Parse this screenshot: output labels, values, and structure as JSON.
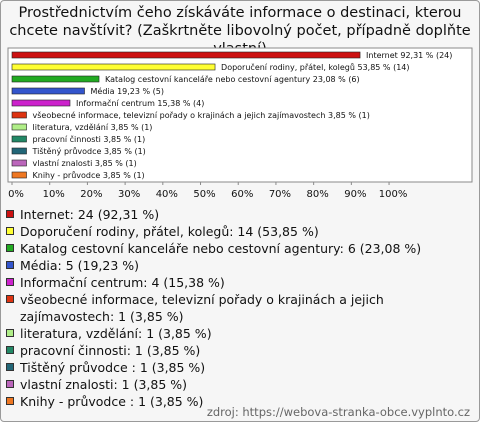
{
  "chart_data": {
    "type": "bar",
    "orientation": "horizontal",
    "title": "Prostřednictvím čeho získáváte informace o destinaci, kterou chcete navštívit? (Zaškrtněte libovolný počet, případně doplňte vlastní)",
    "categories": [
      "Internet",
      "Doporučení rodiny, přátel, kolegů",
      "Katalog cestovní kanceláře nebo cestovní agentury",
      "Média",
      "Informační centrum",
      "všeobecné informace, televizní pořady o krajinách a jejich zajímavostech",
      "literatura, vzdělání",
      "pracovní činnosti",
      "Tištěný průvodce",
      "vlastní znalosti",
      "Knihy - průvodce"
    ],
    "values": [
      92.31,
      53.85,
      23.08,
      19.23,
      15.38,
      3.85,
      3.85,
      3.85,
      3.85,
      3.85,
      3.85
    ],
    "value_labels": [
      "Internet 92,31 % (24)",
      "Doporučení rodiny, přátel, kolegů 53,85 % (14)",
      "Katalog cestovní kanceláře nebo cestovní agentury 23,08 % (6)",
      "Média 19,23 % (5)",
      "Informační centrum 15,38 % (4)",
      "všeobecné informace, televizní pořady o krajinách a jejich zajímavostech 3,85 % (1)",
      "literatura, vzdělání 3,85 % (1)",
      "pracovní činnosti 3,85 % (1)",
      "Tištěný průvodce  3,85 % (1)",
      "vlastní znalosti 3,85 % (1)",
      "Knihy - průvodce  3,85 % (1)"
    ],
    "legend_labels": [
      "Internet: 24 (92,31 %)",
      "Doporučení rodiny, přátel, kolegů: 14 (53,85 %)",
      "Katalog cestovní kanceláře nebo cestovní agentury: 6 (23,08 %)",
      "Média: 5 (19,23 %)",
      "Informační centrum: 4 (15,38 %)",
      "všeobecné informace, televizní pořady o krajinách a jejich zajímavostech: 1 (3,85 %)",
      "literatura, vzdělání: 1 (3,85 %)",
      "pracovní činnosti: 1 (3,85 %)",
      "Tištěný průvodce : 1 (3,85 %)",
      "vlastní znalosti: 1 (3,85 %)",
      "Knihy - průvodce : 1 (3,85 %)"
    ],
    "colors": [
      "#cc1111",
      "#ffff33",
      "#22aa22",
      "#3355cc",
      "#cc22cc",
      "#dd3311",
      "#b0ee88",
      "#228866",
      "#226677",
      "#bb66bb",
      "#ee7722"
    ],
    "xlim": [
      0,
      122
    ],
    "xticks": [
      {
        "value": 0,
        "label": "0%"
      },
      {
        "value": 10,
        "label": "10%"
      },
      {
        "value": 20,
        "label": "20%"
      },
      {
        "value": 30,
        "label": "30%"
      },
      {
        "value": 40,
        "label": "40%"
      },
      {
        "value": 50,
        "label": "50%"
      },
      {
        "value": 60,
        "label": "60%"
      },
      {
        "value": 70,
        "label": "70%"
      },
      {
        "value": 80,
        "label": "80%"
      },
      {
        "value": 90,
        "label": "90%"
      },
      {
        "value": 100,
        "label": "100%"
      }
    ],
    "grid": false,
    "source": "zdroj: https://webova-stranka-obce.vyplnto.cz"
  }
}
